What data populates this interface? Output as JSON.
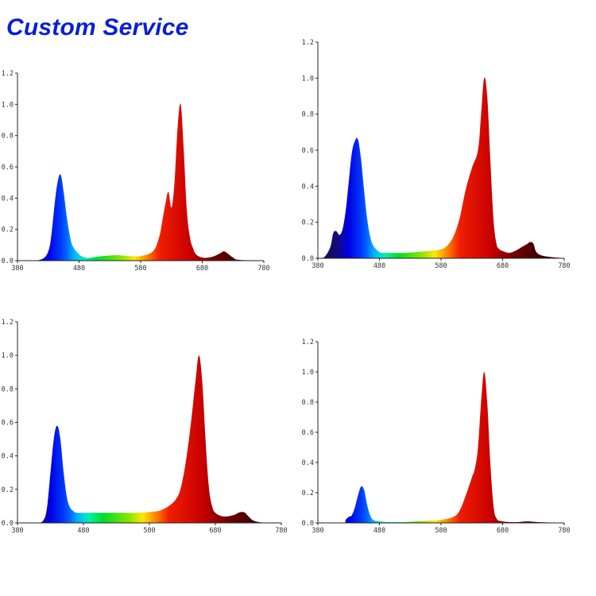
{
  "page": {
    "title": "Custom Service"
  },
  "chart_data": [
    {
      "type": "area",
      "title": "",
      "xlabel": "",
      "ylabel": "",
      "xlim": [
        380,
        780
      ],
      "ylim": [
        0,
        1.2
      ],
      "x_ticks": [
        "380",
        "480",
        "580",
        "680",
        "780"
      ],
      "y_ticks": [
        "0.0",
        "0.2",
        "0.4",
        "0.6",
        "0.8",
        "1.0",
        "1.2"
      ],
      "fill": "wavelength-colored",
      "series": [
        {
          "x": [
            380,
            400,
            420,
            430,
            435,
            440,
            445,
            450,
            455,
            460,
            465,
            470,
            480,
            490,
            500,
            520,
            540,
            560,
            580,
            600,
            610,
            615,
            620,
            625,
            630,
            635,
            640,
            645,
            650,
            655,
            660,
            665,
            670,
            680,
            690,
            700,
            710,
            715,
            720,
            730,
            740,
            780
          ],
          "y": [
            0.0,
            0.0,
            0.01,
            0.06,
            0.16,
            0.35,
            0.5,
            0.55,
            0.44,
            0.28,
            0.16,
            0.09,
            0.04,
            0.02,
            0.02,
            0.03,
            0.035,
            0.03,
            0.03,
            0.06,
            0.15,
            0.25,
            0.36,
            0.44,
            0.34,
            0.5,
            0.85,
            1.0,
            0.7,
            0.32,
            0.15,
            0.08,
            0.04,
            0.02,
            0.02,
            0.03,
            0.05,
            0.06,
            0.05,
            0.02,
            0.005,
            0.0
          ]
        }
      ]
    },
    {
      "type": "area",
      "title": "",
      "xlabel": "",
      "ylabel": "",
      "xlim": [
        380,
        780
      ],
      "ylim": [
        0,
        1.2
      ],
      "x_ticks": [
        "380",
        "480",
        "580",
        "680",
        "780"
      ],
      "y_ticks": [
        "0.0",
        "0.2",
        "0.4",
        "0.6",
        "0.8",
        "1.0",
        "1.2"
      ],
      "fill": "wavelength-colored",
      "series": [
        {
          "x": [
            380,
            390,
            400,
            405,
            410,
            415,
            420,
            425,
            430,
            435,
            440,
            445,
            450,
            455,
            460,
            465,
            470,
            480,
            490,
            500,
            520,
            540,
            560,
            580,
            590,
            600,
            610,
            620,
            630,
            640,
            645,
            650,
            655,
            660,
            665,
            670,
            675,
            680,
            690,
            700,
            710,
            720,
            725,
            730,
            740,
            780
          ],
          "y": [
            0.0,
            0.005,
            0.06,
            0.14,
            0.15,
            0.13,
            0.16,
            0.26,
            0.42,
            0.58,
            0.65,
            0.66,
            0.55,
            0.38,
            0.22,
            0.12,
            0.07,
            0.035,
            0.03,
            0.03,
            0.03,
            0.035,
            0.04,
            0.05,
            0.07,
            0.12,
            0.22,
            0.38,
            0.5,
            0.6,
            0.8,
            1.0,
            0.9,
            0.55,
            0.22,
            0.08,
            0.05,
            0.04,
            0.03,
            0.04,
            0.06,
            0.08,
            0.09,
            0.08,
            0.02,
            0.0
          ]
        }
      ]
    },
    {
      "type": "area",
      "title": "",
      "xlabel": "",
      "ylabel": "",
      "xlim": [
        380,
        780
      ],
      "ylim": [
        0,
        1.2
      ],
      "x_ticks": [
        "380",
        "480",
        "580",
        "680",
        "780"
      ],
      "y_ticks": [
        "0.0",
        "0.2",
        "0.4",
        "0.6",
        "0.8",
        "1.0",
        "1.2"
      ],
      "fill": "wavelength-colored",
      "series": [
        {
          "x": [
            380,
            410,
            420,
            425,
            430,
            435,
            440,
            445,
            450,
            455,
            460,
            465,
            470,
            480,
            500,
            520,
            540,
            560,
            580,
            600,
            620,
            630,
            640,
            650,
            655,
            660,
            665,
            670,
            675,
            680,
            690,
            700,
            710,
            715,
            720,
            725,
            730,
            740,
            760,
            780
          ],
          "y": [
            0.0,
            0.0,
            0.02,
            0.1,
            0.3,
            0.5,
            0.58,
            0.5,
            0.3,
            0.15,
            0.09,
            0.07,
            0.06,
            0.06,
            0.06,
            0.06,
            0.06,
            0.06,
            0.065,
            0.08,
            0.14,
            0.25,
            0.5,
            0.85,
            1.0,
            0.85,
            0.5,
            0.22,
            0.1,
            0.06,
            0.04,
            0.04,
            0.05,
            0.06,
            0.065,
            0.06,
            0.04,
            0.01,
            0.0,
            0.0
          ]
        }
      ]
    },
    {
      "type": "area",
      "title": "",
      "xlabel": "",
      "ylabel": "",
      "xlim": [
        380,
        780
      ],
      "ylim": [
        0,
        1.2
      ],
      "x_ticks": [
        "380",
        "480",
        "580",
        "680",
        "780"
      ],
      "y_ticks": [
        "0.0",
        "0.2",
        "0.4",
        "0.6",
        "0.8",
        "1.0",
        "1.2"
      ],
      "fill": "wavelength-colored",
      "series": [
        {
          "x": [
            380,
            420,
            425,
            430,
            435,
            440,
            445,
            450,
            455,
            460,
            465,
            470,
            480,
            500,
            520,
            540,
            560,
            580,
            600,
            610,
            620,
            630,
            635,
            640,
            645,
            650,
            655,
            660,
            665,
            670,
            680,
            700,
            720,
            740,
            780
          ],
          "y": [
            0.0,
            0.0,
            0.02,
            0.04,
            0.05,
            0.1,
            0.18,
            0.24,
            0.22,
            0.12,
            0.05,
            0.02,
            0.01,
            0.005,
            0.005,
            0.01,
            0.015,
            0.02,
            0.04,
            0.08,
            0.18,
            0.3,
            0.36,
            0.5,
            0.8,
            1.0,
            0.8,
            0.4,
            0.12,
            0.03,
            0.01,
            0.005,
            0.01,
            0.005,
            0.0
          ]
        }
      ]
    }
  ]
}
